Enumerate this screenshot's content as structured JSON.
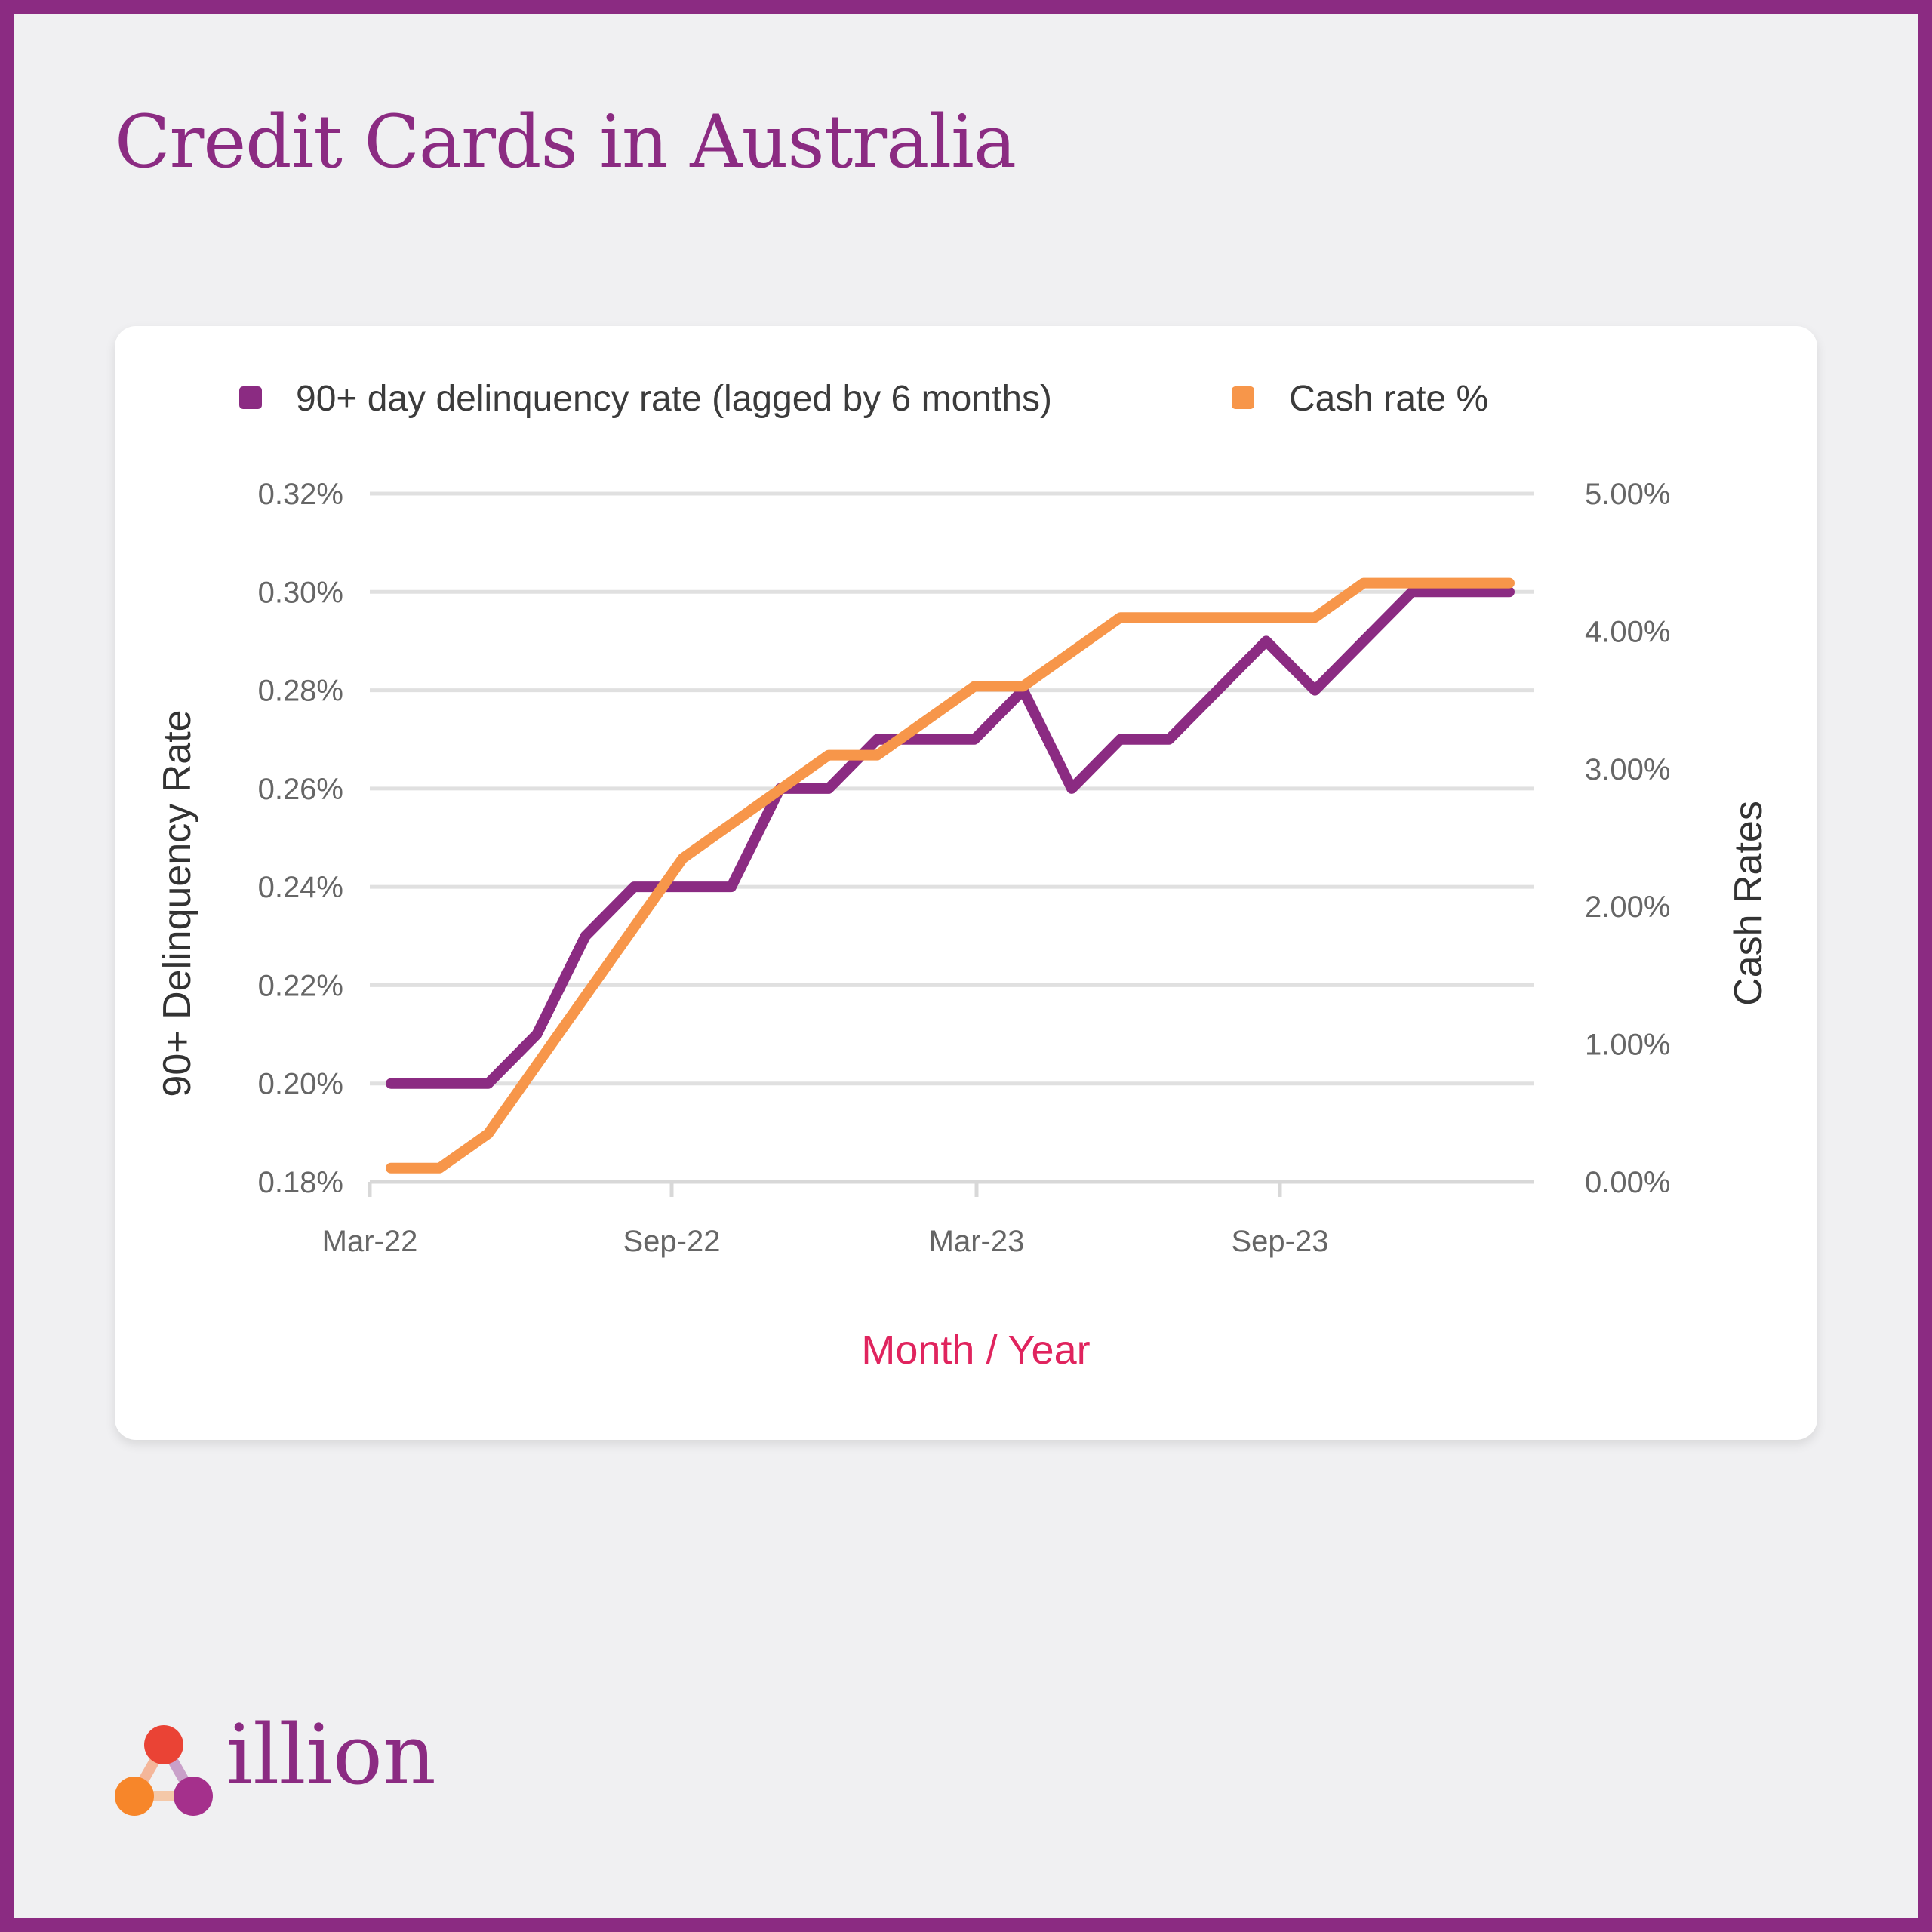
{
  "title": "Credit Cards in Australia",
  "brand": {
    "name": "illion",
    "colors": {
      "purple": "#8b2b82",
      "orange": "#f7964a",
      "red": "#ea4335"
    }
  },
  "chart_data": {
    "type": "line",
    "x": [
      "Mar-22",
      "Apr-22",
      "May-22",
      "Jun-22",
      "Jul-22",
      "Aug-22",
      "Sep-22",
      "Oct-22",
      "Nov-22",
      "Dec-22",
      "Jan-23",
      "Feb-23",
      "Mar-23",
      "Apr-23",
      "May-23",
      "Jun-23",
      "Jul-23",
      "Aug-23",
      "Sep-23",
      "Oct-23",
      "Nov-23",
      "Dec-23",
      "Jan-24",
      "Feb-24"
    ],
    "xticks": [
      "Mar-22",
      "Sep-22",
      "Mar-23",
      "Sep-23"
    ],
    "xlabel": "Month / Year",
    "series": [
      {
        "name": "90+ day delinquency rate (lagged by 6 months)",
        "axis": "left",
        "color": "#8b2b82",
        "values": [
          0.2,
          0.2,
          0.2,
          0.21,
          0.23,
          0.24,
          0.24,
          0.24,
          0.26,
          0.26,
          0.27,
          0.27,
          0.27,
          0.28,
          0.26,
          0.27,
          0.27,
          0.28,
          0.29,
          0.28,
          0.29,
          0.3,
          0.3,
          0.3
        ]
      },
      {
        "name": "Cash rate %",
        "axis": "right",
        "color": "#f7964a",
        "values": [
          0.1,
          0.1,
          0.35,
          0.85,
          1.35,
          1.85,
          2.35,
          2.6,
          2.85,
          3.1,
          3.1,
          3.35,
          3.6,
          3.6,
          3.85,
          4.1,
          4.1,
          4.1,
          4.1,
          4.1,
          4.35,
          4.35,
          4.35,
          4.35
        ]
      }
    ],
    "left_axis": {
      "label": "90+ Delinquency Rate",
      "ylim": [
        0.18,
        0.32
      ],
      "ticks": [
        "0.18%",
        "0.20%",
        "0.22%",
        "0.24%",
        "0.26%",
        "0.28%",
        "0.30%",
        "0.32%"
      ]
    },
    "right_axis": {
      "label": "Cash Rates",
      "ylim": [
        0,
        5
      ],
      "ticks": [
        "0.00%",
        "1.00%",
        "2.00%",
        "3.00%",
        "4.00%",
        "5.00%"
      ]
    },
    "grid": true,
    "legend": "top"
  }
}
